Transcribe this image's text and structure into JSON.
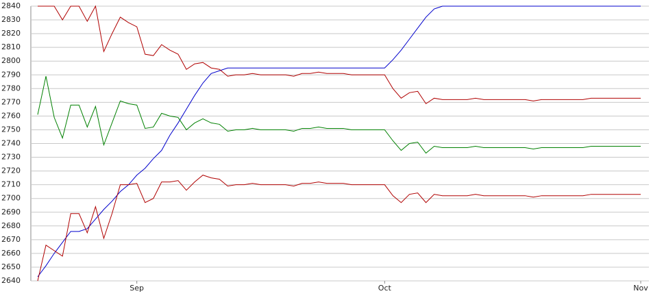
{
  "chart_data": {
    "type": "line",
    "categories": [
      null,
      null,
      null,
      null,
      null,
      null,
      null,
      null,
      null,
      null,
      null,
      null,
      "Sep",
      null,
      null,
      null,
      null,
      null,
      null,
      null,
      null,
      null,
      null,
      null,
      null,
      null,
      null,
      null,
      null,
      null,
      null,
      null,
      null,
      null,
      null,
      null,
      null,
      null,
      null,
      null,
      null,
      null,
      "Oct",
      null,
      null,
      null,
      null,
      null,
      null,
      null,
      null,
      null,
      null,
      null,
      null,
      null,
      null,
      null,
      null,
      null,
      null,
      null,
      null,
      null,
      null,
      null,
      null,
      null,
      null,
      null,
      null,
      null,
      null,
      "Nov"
    ],
    "series": [
      {
        "color": "#0000cc",
        "values": [
          2643,
          2651,
          2660,
          2668,
          2676,
          2676,
          2678,
          2685,
          2692,
          2698,
          2705,
          2710,
          2717,
          2722,
          2729,
          2735,
          2746,
          2755,
          2765,
          2775,
          2784,
          2791,
          2793,
          2795,
          2795,
          2795,
          2795,
          2795,
          2795,
          2795,
          2795,
          2795,
          2795,
          2795,
          2795,
          2795,
          2795,
          2795,
          2795,
          2795,
          2795,
          2795,
          2795,
          2801,
          2808,
          2816,
          2824,
          2832,
          2838,
          2840,
          2840,
          2840,
          2840,
          2840,
          2840,
          2840,
          2840,
          2840,
          2840,
          2840,
          2840,
          2840,
          2840,
          2840,
          2840,
          2840,
          2840,
          2840,
          2840,
          2840,
          2840,
          2840,
          2840,
          2840
        ]
      },
      {
        "color": "#b00000",
        "values": [
          2840,
          2840,
          2840,
          2830,
          2840,
          2840,
          2829,
          2840,
          2807,
          2820,
          2832,
          2828,
          2825,
          2805,
          2804,
          2812,
          2808,
          2805,
          2794,
          2798,
          2799,
          2795,
          2794,
          2789,
          2790,
          2790,
          2791,
          2790,
          2790,
          2790,
          2790,
          2789,
          2791,
          2791,
          2792,
          2791,
          2791,
          2791,
          2790,
          2790,
          2790,
          2790,
          2790,
          2780,
          2773,
          2777,
          2778,
          2769,
          2773,
          2772,
          2772,
          2772,
          2772,
          2773,
          2772,
          2772,
          2772,
          2772,
          2772,
          2772,
          2771,
          2772,
          2772,
          2772,
          2772,
          2772,
          2772,
          2773,
          2773,
          2773,
          2773,
          2773,
          2773,
          2773
        ]
      },
      {
        "color": "#008000",
        "values": [
          2761,
          2789,
          2759,
          2744,
          2768,
          2768,
          2752,
          2767,
          2739,
          2755,
          2771,
          2769,
          2768,
          2751,
          2752,
          2762,
          2760,
          2759,
          2750,
          2755,
          2758,
          2755,
          2754,
          2749,
          2750,
          2750,
          2751,
          2750,
          2750,
          2750,
          2750,
          2749,
          2751,
          2751,
          2752,
          2751,
          2751,
          2751,
          2750,
          2750,
          2750,
          2750,
          2750,
          2742,
          2735,
          2740,
          2741,
          2733,
          2738,
          2737,
          2737,
          2737,
          2737,
          2738,
          2737,
          2737,
          2737,
          2737,
          2737,
          2737,
          2736,
          2737,
          2737,
          2737,
          2737,
          2737,
          2737,
          2738,
          2738,
          2738,
          2738,
          2738,
          2738,
          2738
        ]
      },
      {
        "color": "#b00000",
        "values": [
          2640,
          2666,
          2662,
          2658,
          2689,
          2689,
          2675,
          2694,
          2671,
          2689,
          2710,
          2710,
          2711,
          2697,
          2700,
          2712,
          2712,
          2713,
          2706,
          2712,
          2717,
          2715,
          2714,
          2709,
          2710,
          2710,
          2711,
          2710,
          2710,
          2710,
          2710,
          2709,
          2711,
          2711,
          2712,
          2711,
          2711,
          2711,
          2710,
          2710,
          2710,
          2710,
          2710,
          2702,
          2697,
          2703,
          2704,
          2697,
          2703,
          2702,
          2702,
          2702,
          2702,
          2703,
          2702,
          2702,
          2702,
          2702,
          2702,
          2702,
          2701,
          2702,
          2702,
          2702,
          2702,
          2702,
          2702,
          2703,
          2703,
          2703,
          2703,
          2703,
          2703,
          2703
        ]
      }
    ],
    "ylim": [
      2640,
      2840
    ],
    "yticks": [
      2640,
      2650,
      2660,
      2670,
      2680,
      2690,
      2700,
      2710,
      2720,
      2730,
      2740,
      2750,
      2760,
      2770,
      2780,
      2790,
      2800,
      2810,
      2820,
      2830,
      2840
    ],
    "grid": true
  }
}
